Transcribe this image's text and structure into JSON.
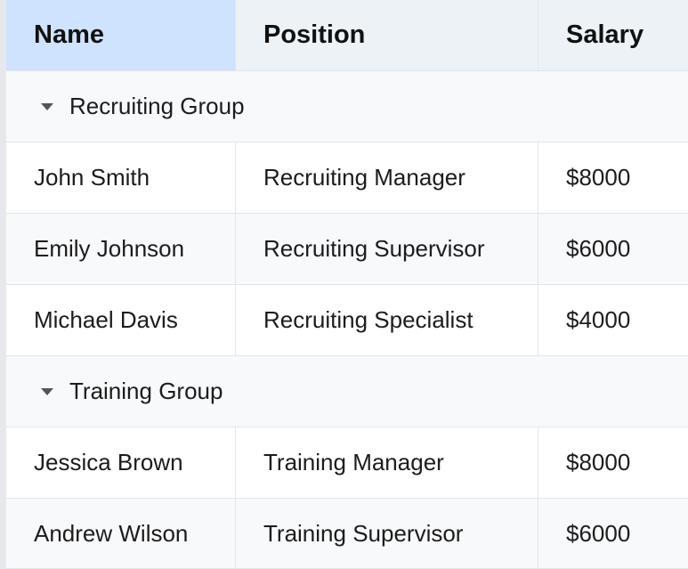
{
  "columns": {
    "name": "Name",
    "position": "Position",
    "salary": "Salary"
  },
  "groups": [
    {
      "label": "Recruiting Group",
      "rows": [
        {
          "name": "John Smith",
          "position": "Recruiting Manager",
          "salary": "$8000"
        },
        {
          "name": "Emily Johnson",
          "position": "Recruiting Supervisor",
          "salary": "$6000"
        },
        {
          "name": "Michael Davis",
          "position": "Recruiting Specialist",
          "salary": "$4000"
        }
      ]
    },
    {
      "label": "Training Group",
      "rows": [
        {
          "name": "Jessica Brown",
          "position": "Training Manager",
          "salary": "$8000"
        },
        {
          "name": "Andrew Wilson",
          "position": "Training Supervisor",
          "salary": "$6000"
        }
      ]
    }
  ],
  "colors": {
    "header_bg": "#edf2f7",
    "selected_header_bg": "#cfe2fe",
    "group_bg": "#f8f9fb",
    "border": "#e3e5e9"
  }
}
